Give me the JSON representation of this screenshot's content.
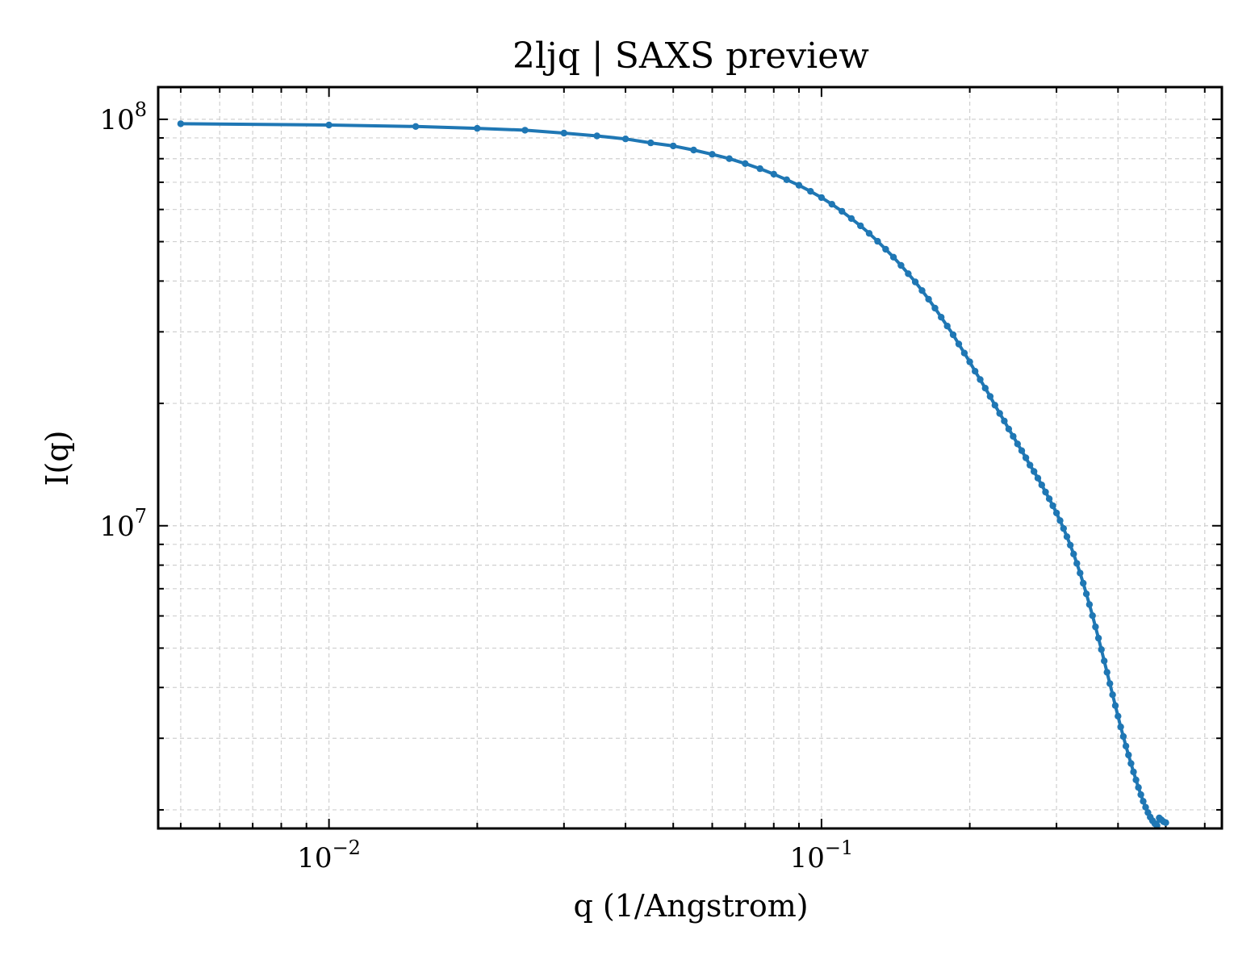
{
  "chart_data": {
    "type": "line",
    "title": "2ljq | SAXS preview",
    "xlabel": "q (1/Angstrom)",
    "ylabel": "I(q)",
    "xscale": "log",
    "yscale": "log",
    "xlim": [
      0.0045,
      0.65
    ],
    "ylim": [
      1800000.0,
      120000000.0
    ],
    "grid": true,
    "x_ticks": [
      {
        "value": 0.01,
        "base": "10",
        "exp": "−2"
      },
      {
        "value": 0.1,
        "base": "10",
        "exp": "−1"
      }
    ],
    "y_ticks": [
      {
        "value": 10000000,
        "base": "10",
        "exp": "7"
      },
      {
        "value": 100000000,
        "base": "10",
        "exp": "8"
      }
    ],
    "series": [
      {
        "color": "#1f77b4",
        "x": [
          0.005,
          0.01,
          0.015,
          0.02,
          0.025,
          0.03,
          0.035,
          0.04,
          0.045,
          0.05,
          0.055,
          0.06,
          0.065,
          0.07,
          0.075,
          0.08,
          0.085,
          0.09,
          0.095,
          0.1,
          0.105,
          0.11,
          0.115,
          0.12,
          0.125,
          0.13,
          0.135,
          0.14,
          0.145,
          0.15,
          0.155,
          0.16,
          0.165,
          0.17,
          0.175,
          0.18,
          0.185,
          0.19,
          0.195,
          0.2,
          0.205,
          0.21,
          0.215,
          0.22,
          0.225,
          0.23,
          0.235,
          0.24,
          0.245,
          0.25,
          0.255,
          0.26,
          0.265,
          0.27,
          0.275,
          0.28,
          0.285,
          0.29,
          0.295,
          0.3,
          0.305,
          0.31,
          0.315,
          0.32,
          0.325,
          0.33,
          0.335,
          0.34,
          0.345,
          0.35,
          0.355,
          0.36,
          0.365,
          0.37,
          0.375,
          0.38,
          0.385,
          0.39,
          0.395,
          0.4,
          0.405,
          0.41,
          0.415,
          0.42,
          0.425,
          0.43,
          0.435,
          0.44,
          0.445,
          0.45,
          0.455,
          0.46,
          0.465,
          0.47,
          0.475,
          0.48,
          0.485,
          0.49,
          0.495,
          0.5
        ],
        "y": [
          97500000,
          96800000,
          96000000,
          95000000,
          94000000,
          92500000,
          91000000,
          89500000,
          87500000,
          86000000,
          84000000,
          82000000,
          80000000,
          77800000,
          75600000,
          73300000,
          71000000,
          68800000,
          66500000,
          64200000,
          61800000,
          59400000,
          57000000,
          54700000,
          52400000,
          50100000,
          47900000,
          45800000,
          43700000,
          41700000,
          39800000,
          37900000,
          36100000,
          34300000,
          32600000,
          31000000,
          29500000,
          28000000,
          26600000,
          25300000,
          24000000,
          22900000,
          21800000,
          20800000,
          19800000,
          18900000,
          18100000,
          17300000,
          16600000,
          15900000,
          15300000,
          14700000,
          14100000,
          13600000,
          13100000,
          12600000,
          12100000,
          11650000,
          11200000,
          10750000,
          10300000,
          9850000,
          9400000,
          8960000,
          8520000,
          8080000,
          7650000,
          7220000,
          6800000,
          6400000,
          6010000,
          5640000,
          5290000,
          4960000,
          4650000,
          4360000,
          4090000,
          3840000,
          3610000,
          3400000,
          3200000,
          3030000,
          2870000,
          2730000,
          2600000,
          2480000,
          2370000,
          2270000,
          2180000,
          2100000,
          2030000,
          1970000,
          1920000,
          1880000,
          1850000,
          1830000,
          1910000,
          1890000,
          1870000,
          1860000
        ]
      }
    ]
  }
}
